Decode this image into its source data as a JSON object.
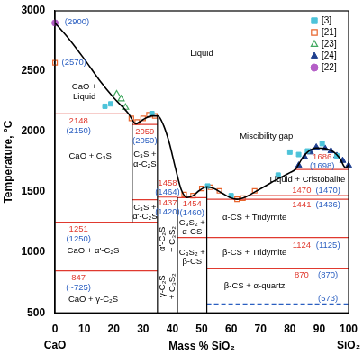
{
  "chart_data": {
    "type": "scatter",
    "x_label": "Mass % SiO₂",
    "y_label": "Temperature, °C",
    "end_labels": [
      "CaO",
      "SiO₂"
    ],
    "xlim": [
      0,
      100
    ],
    "xticks": [
      0,
      10,
      20,
      30,
      40,
      50,
      60,
      70,
      80,
      90,
      100
    ],
    "ylim": [
      500,
      3000
    ],
    "yticks": [
      500,
      1000,
      1500,
      2000,
      2500,
      3000
    ],
    "grid": false,
    "legend": "top right",
    "lines": [
      {
        "color": "#000000",
        "line_style": "solid",
        "x": [
          0,
          5,
          10,
          15,
          20,
          25,
          27.5,
          30,
          33,
          35,
          37,
          39,
          41,
          43,
          45,
          47,
          49,
          51.7,
          54,
          57,
          60,
          62,
          65,
          68,
          72,
          76,
          80,
          82,
          84,
          86,
          89,
          92,
          95,
          97,
          99,
          100
        ],
        "y": [
          2900,
          2760,
          2600,
          2430,
          2280,
          2150,
          2065,
          2100,
          2130,
          2130,
          2050,
          1900,
          1700,
          1520,
          1455,
          1470,
          1510,
          1544,
          1530,
          1490,
          1450,
          1440,
          1460,
          1500,
          1555,
          1610,
          1660,
          1690,
          1770,
          1830,
          1865,
          1860,
          1830,
          1780,
          1700,
          1723
        ]
      },
      {
        "color": "#000000",
        "line_style": "solid",
        "x": [
          26.3,
          26.3
        ],
        "y": [
          1251,
          2070
        ]
      },
      {
        "color": "#000000",
        "line_style": "solid",
        "x": [
          34.9,
          34.9
        ],
        "y": [
          500,
          2130
        ]
      },
      {
        "color": "#000000",
        "line_style": "solid",
        "x": [
          41.7,
          41.7
        ],
        "y": [
          500,
          1458
        ]
      },
      {
        "color": "#000000",
        "line_style": "solid",
        "x": [
          51.7,
          51.7
        ],
        "y": [
          500,
          1544
        ]
      },
      {
        "color": "#e03a2f",
        "line_style": "solid",
        "x": [
          0,
          25
        ],
        "y": [
          2148,
          2148
        ]
      },
      {
        "color": "#e03a2f",
        "line_style": "solid",
        "x": [
          26.3,
          34.9
        ],
        "y": [
          2059,
          2059
        ]
      },
      {
        "color": "#e03a2f",
        "line_style": "solid",
        "x": [
          26.3,
          34.9
        ],
        "y": [
          1437,
          1437
        ]
      },
      {
        "color": "#e03a2f",
        "line_style": "solid",
        "x": [
          34.9,
          41.7
        ],
        "y": [
          1458,
          1458
        ]
      },
      {
        "color": "#e03a2f",
        "line_style": "solid",
        "x": [
          41.7,
          51.7
        ],
        "y": [
          1454,
          1454
        ]
      },
      {
        "color": "#e03a2f",
        "line_style": "solid",
        "x": [
          0,
          34.9
        ],
        "y": [
          1251,
          1251
        ]
      },
      {
        "color": "#e03a2f",
        "line_style": "solid",
        "x": [
          0,
          34.9
        ],
        "y": [
          847,
          847
        ]
      },
      {
        "color": "#e03a2f",
        "line_style": "solid",
        "x": [
          81.5,
          100
        ],
        "y": [
          1686,
          1686
        ]
      },
      {
        "color": "#e03a2f",
        "line_style": "solid",
        "x": [
          65.5,
          100
        ],
        "y": [
          1470,
          1470
        ]
      },
      {
        "color": "#e03a2f",
        "line_style": "solid",
        "x": [
          51.7,
          100
        ],
        "y": [
          1441,
          1441
        ]
      },
      {
        "color": "#e03a2f",
        "line_style": "solid",
        "x": [
          41.7,
          100
        ],
        "y": [
          1124,
          1124
        ]
      },
      {
        "color": "#e03a2f",
        "line_style": "solid",
        "x": [
          51.7,
          100
        ],
        "y": [
          870,
          870
        ]
      },
      {
        "color": "#2b5fc1",
        "line_style": "dashed",
        "x": [
          51.7,
          100
        ],
        "y": [
          573,
          573
        ]
      }
    ],
    "series": [
      {
        "name": "[3]",
        "color": "#4dc3d9",
        "marker": "square",
        "x": [
          17,
          19,
          33,
          52,
          60,
          76,
          80,
          83,
          86,
          91,
          96
        ],
        "values": [
          2210,
          2230,
          2150,
          1550,
          1470,
          1640,
          1830,
          1810,
          1840,
          1900,
          1800
        ]
      },
      {
        "name": "[21]",
        "color": "#e8642c",
        "marker": "square-open",
        "x": [
          0,
          26,
          28,
          30,
          32,
          34,
          44,
          47,
          50,
          53,
          56,
          62,
          64,
          68
        ],
        "values": [
          2570,
          2110,
          2080,
          2110,
          2140,
          2130,
          1480,
          1470,
          1530,
          1540,
          1510,
          1440,
          1450,
          1510
        ]
      },
      {
        "name": "[23]",
        "color": "#41a85f",
        "marker": "triangle-open",
        "x": [
          21,
          22.5,
          24
        ],
        "values": [
          2310,
          2270,
          2200
        ]
      },
      {
        "name": "[24]",
        "color": "#1f3f8f",
        "marker": "triangle",
        "x": [
          83,
          85,
          87,
          89,
          92,
          94,
          96,
          98,
          100
        ],
        "values": [
          1720,
          1790,
          1830,
          1870,
          1860,
          1840,
          1800,
          1760,
          1720
        ]
      },
      {
        "name": "[22]",
        "color": "#b45ec7",
        "marker": "circle",
        "x": [
          0
        ],
        "values": [
          2900
        ]
      }
    ],
    "annotations": [
      {
        "text": "Liquid",
        "x": 50,
        "y": 2650,
        "color": "#000000"
      },
      {
        "text": "CaO +\nLiquid",
        "x": 10,
        "y": 2330,
        "color": "#000000"
      },
      {
        "text": "CaO + C₃S",
        "x": 12,
        "y": 1800,
        "color": "#000000"
      },
      {
        "text": "C₃S +\nα-C₂S",
        "x": 30.6,
        "y": 1770,
        "color": "#000000"
      },
      {
        "text": "C₃S +\nα'-C₂S",
        "x": 30.6,
        "y": 1335,
        "color": "#000000"
      },
      {
        "text": "CaO + α'-C₂S",
        "x": 13,
        "y": 1010,
        "color": "#000000"
      },
      {
        "text": "CaO + γ-C₂S",
        "x": 13,
        "y": 610,
        "color": "#000000"
      },
      {
        "text": "α'-C₂S\n+ C₃S₂",
        "x": 38.3,
        "y": 1110,
        "color": "#000000",
        "orientation": "vertical"
      },
      {
        "text": "γ-C₂S\n+ C₃S₂",
        "x": 38.3,
        "y": 720,
        "color": "#000000",
        "orientation": "vertical"
      },
      {
        "text": "C₃S₂ +\nα-CS",
        "x": 46.7,
        "y": 1208,
        "color": "#000000"
      },
      {
        "text": "C₃S₂ +\nβ-CS",
        "x": 46.7,
        "y": 962,
        "color": "#000000"
      },
      {
        "text": "α-CS + Tridymite",
        "x": 68,
        "y": 1290,
        "color": "#000000"
      },
      {
        "text": "β-CS + Tridymite",
        "x": 68,
        "y": 1000,
        "color": "#000000"
      },
      {
        "text": "β-CS + α-quartz",
        "x": 68,
        "y": 720,
        "color": "#000000"
      },
      {
        "text": "Liquid + Cristobalite",
        "x": 86,
        "y": 1600,
        "color": "#000000"
      },
      {
        "text": "Miscibility gap",
        "x": 72,
        "y": 1960,
        "color": "#000000"
      },
      {
        "text": "(2900)",
        "x": 7.5,
        "y": 2910,
        "color": "#2b5fc1"
      },
      {
        "text": "(2570)",
        "x": 6.5,
        "y": 2570,
        "color": "#2b5fc1"
      },
      {
        "text": "2148",
        "x": 8,
        "y": 2085,
        "color": "#e03a2f"
      },
      {
        "text": "(2150)",
        "x": 8,
        "y": 2005,
        "color": "#2b5fc1"
      },
      {
        "text": "2059",
        "x": 30.6,
        "y": 2000,
        "color": "#e03a2f"
      },
      {
        "text": "(2050)",
        "x": 30.6,
        "y": 1925,
        "color": "#2b5fc1"
      },
      {
        "text": "1458",
        "x": 38.3,
        "y": 1575,
        "color": "#e03a2f"
      },
      {
        "text": "(1464)",
        "x": 38.3,
        "y": 1500,
        "color": "#2b5fc1"
      },
      {
        "text": "1437",
        "x": 38.3,
        "y": 1410,
        "color": "#e03a2f"
      },
      {
        "text": "(1420)",
        "x": 38.3,
        "y": 1335,
        "color": "#2b5fc1"
      },
      {
        "text": "1454",
        "x": 46.7,
        "y": 1400,
        "color": "#e03a2f"
      },
      {
        "text": "(1460)",
        "x": 46.7,
        "y": 1325,
        "color": "#2b5fc1"
      },
      {
        "text": "1251",
        "x": 8,
        "y": 1190,
        "color": "#e03a2f"
      },
      {
        "text": "(1250)",
        "x": 8,
        "y": 1110,
        "color": "#2b5fc1"
      },
      {
        "text": "847",
        "x": 8,
        "y": 790,
        "color": "#e03a2f"
      },
      {
        "text": "(~725)",
        "x": 8,
        "y": 710,
        "color": "#2b5fc1"
      },
      {
        "text": "1686",
        "x": 91,
        "y": 1790,
        "color": "#e03a2f"
      },
      {
        "text": "(1698)",
        "x": 91,
        "y": 1715,
        "color": "#2b5fc1"
      },
      {
        "text": "1470",
        "x": 84,
        "y": 1510,
        "color": "#e03a2f"
      },
      {
        "text": "(1470)",
        "x": 93,
        "y": 1510,
        "color": "#2b5fc1"
      },
      {
        "text": "1441",
        "x": 84,
        "y": 1390,
        "color": "#e03a2f"
      },
      {
        "text": "(1436)",
        "x": 93,
        "y": 1390,
        "color": "#2b5fc1"
      },
      {
        "text": "1124",
        "x": 84,
        "y": 1060,
        "color": "#e03a2f"
      },
      {
        "text": "(1125)",
        "x": 93,
        "y": 1060,
        "color": "#2b5fc1"
      },
      {
        "text": "870",
        "x": 84,
        "y": 810,
        "color": "#e03a2f"
      },
      {
        "text": "(870)",
        "x": 93,
        "y": 810,
        "color": "#2b5fc1"
      },
      {
        "text": "(573)",
        "x": 93,
        "y": 620,
        "color": "#2b5fc1"
      }
    ]
  }
}
